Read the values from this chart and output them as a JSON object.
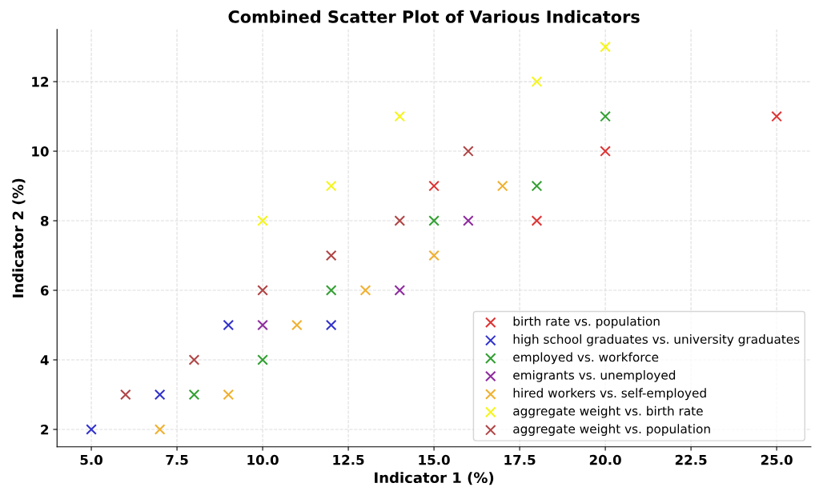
{
  "chart_data": {
    "type": "scatter",
    "title": "Combined Scatter Plot of Various Indicators",
    "xlabel": "Indicator 1 (%)",
    "ylabel": "Indicator 2 (%)",
    "series": [
      {
        "name": "birth rate vs. population",
        "color": "#dd3333",
        "x": [
          15,
          18,
          20,
          25
        ],
        "values": [
          9,
          8,
          10,
          11
        ]
      },
      {
        "name": "high school graduates vs. university graduates",
        "color": "#3333cc",
        "x": [
          5,
          7,
          9,
          12
        ],
        "values": [
          2,
          3,
          5,
          5
        ]
      },
      {
        "name": "employed vs. workforce",
        "color": "#33a033",
        "x": [
          8,
          10,
          12,
          15,
          18,
          20
        ],
        "values": [
          3,
          4,
          6,
          8,
          9,
          11
        ]
      },
      {
        "name": "emigrants vs. unemployed",
        "color": "#8e2c9e",
        "x": [
          10,
          14,
          16
        ],
        "values": [
          5,
          6,
          8
        ]
      },
      {
        "name": "hired workers vs. self-employed",
        "color": "#f0b030",
        "x": [
          7,
          9,
          11,
          13,
          15,
          17
        ],
        "values": [
          2,
          3,
          5,
          6,
          7,
          9
        ]
      },
      {
        "name": "aggregate weight vs. birth rate",
        "color": "#f5f51a",
        "x": [
          10,
          12,
          14,
          18,
          20
        ],
        "values": [
          8,
          9,
          11,
          12,
          13
        ]
      },
      {
        "name": "aggregate weight vs. population",
        "color": "#b04545",
        "x": [
          6,
          8,
          10,
          12,
          14,
          16
        ],
        "values": [
          3,
          4,
          6,
          7,
          8,
          10
        ]
      }
    ],
    "xlim": [
      4.0,
      26.0
    ],
    "ylim": [
      1.5,
      13.5
    ],
    "xticks": [
      {
        "value": 5,
        "label": "5.0"
      },
      {
        "value": 7.5,
        "label": "7.5"
      },
      {
        "value": 10,
        "label": "10.0"
      },
      {
        "value": 12.5,
        "label": "12.5"
      },
      {
        "value": 15,
        "label": "15.0"
      },
      {
        "value": 17.5,
        "label": "17.5"
      },
      {
        "value": 20,
        "label": "20.0"
      },
      {
        "value": 22.5,
        "label": "22.5"
      },
      {
        "value": 25,
        "label": "25.0"
      }
    ],
    "yticks": [
      2,
      4,
      6,
      8,
      10,
      12
    ],
    "grid": true,
    "legend": "bottom right",
    "marker": "cross"
  }
}
